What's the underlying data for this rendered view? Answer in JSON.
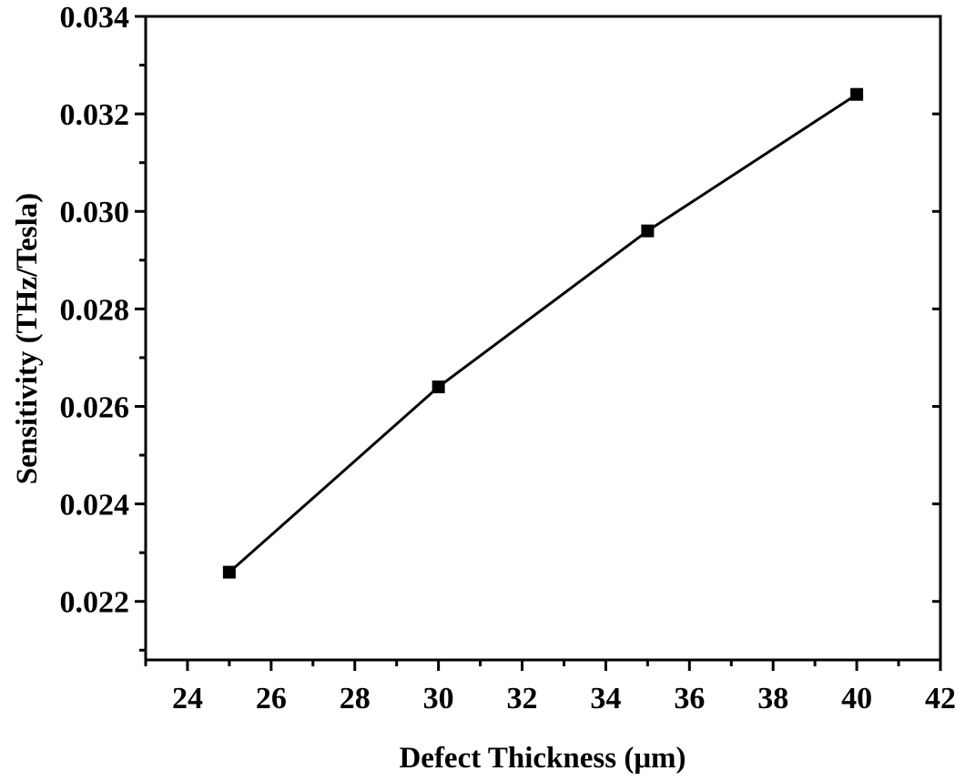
{
  "chart_data": {
    "type": "line",
    "title": "",
    "xlabel": "Defect Thickness (μm)",
    "ylabel": "Sensitivity (THz/Tesla)",
    "xlim": [
      23,
      42
    ],
    "ylim": [
      0.0208,
      0.034
    ],
    "xticks": [
      "24",
      "26",
      "28",
      "30",
      "32",
      "34",
      "36",
      "38",
      "40",
      "42"
    ],
    "yticks": [
      "0.022",
      "0.024",
      "0.026",
      "0.028",
      "0.030",
      "0.032",
      "0.034"
    ],
    "grid": false,
    "legend": "none",
    "marker": "square",
    "color": "#000000",
    "series": [
      {
        "x": [
          25,
          30,
          35,
          40
        ],
        "y": [
          0.0226,
          0.0264,
          0.0296,
          0.0324
        ]
      }
    ]
  }
}
